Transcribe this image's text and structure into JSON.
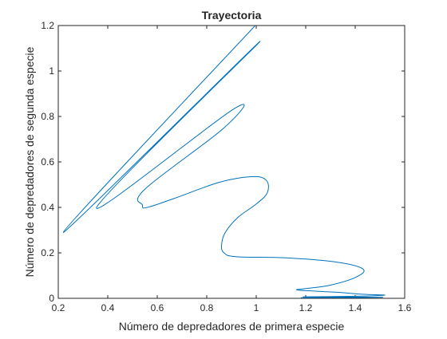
{
  "chart_data": {
    "type": "line",
    "title": "Trayectoria",
    "xlabel": "Número de depredadores de primera especie",
    "ylabel": "Número de depredadores de segunda especie",
    "xlim": [
      0.2,
      1.6
    ],
    "ylim": [
      0,
      1.2
    ],
    "xticks": [
      0.2,
      0.4,
      0.6,
      0.8,
      1,
      1.2,
      1.4,
      1.6
    ],
    "xtick_labels": [
      "0.2",
      "0.4",
      "0.6",
      "0.8",
      "1",
      "1.2",
      "1.4",
      "1.6"
    ],
    "yticks": [
      0,
      0.2,
      0.4,
      0.6,
      0.8,
      1,
      1.2
    ],
    "ytick_labels": [
      "0",
      "0.2",
      "0.4",
      "0.6",
      "0.8",
      "1",
      "1.2"
    ],
    "grid": false,
    "line_color": "#0072BD",
    "series": [
      {
        "x": [
          0.996,
          0.22,
          1.015,
          0.355,
          0.905,
          0.87,
          0.55,
          0.54,
          0.56,
          0.67,
          0.85,
          0.98,
          1.04,
          1.045,
          1.0,
          0.925,
          0.875,
          0.86,
          0.87,
          0.92,
          1.12,
          1.32,
          1.43,
          1.405,
          1.3,
          1.2,
          1.17,
          1.32,
          1.43,
          1.52,
          1.42,
          1.27,
          1.19,
          1.3,
          1.44,
          1.51,
          1.4,
          1.25,
          1.18
        ],
        "y": [
          1.2,
          0.29,
          1.13,
          0.4,
          0.83,
          0.75,
          0.48,
          0.41,
          0.4,
          0.44,
          0.51,
          0.535,
          0.52,
          0.465,
          0.415,
          0.355,
          0.29,
          0.235,
          0.2,
          0.183,
          0.178,
          0.16,
          0.13,
          0.094,
          0.058,
          0.043,
          0.036,
          0.027,
          0.018,
          0.014,
          0.0095,
          0.0075,
          0.0065,
          0.0058,
          0.0054,
          0.0045,
          0.0035,
          0.003,
          0.0025
        ]
      }
    ]
  }
}
